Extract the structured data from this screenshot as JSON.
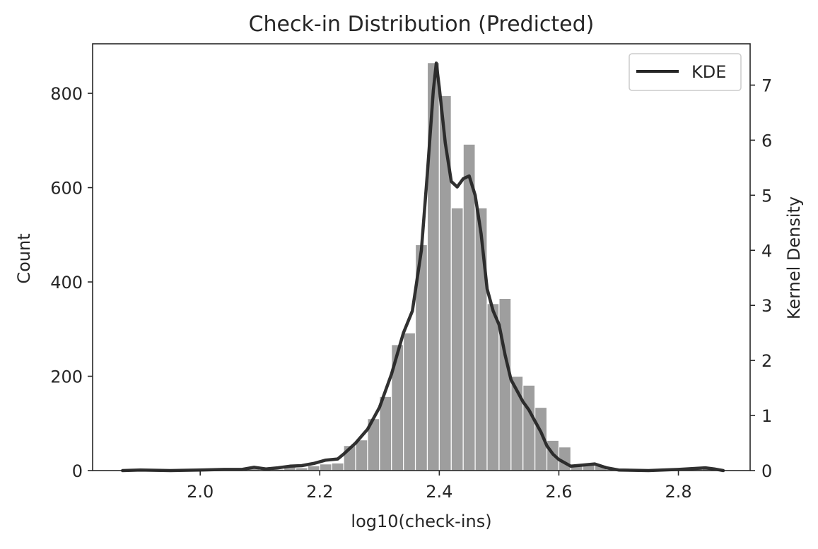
{
  "chart_data": {
    "type": "bar",
    "title": "Check-in Distribution (Predicted)",
    "xlabel": "log10(check-ins)",
    "ylabel": "Count",
    "ylabel_right": "Kernel Density",
    "xlim": [
      1.82,
      2.92
    ],
    "ylim": [
      0,
      905
    ],
    "ylim_right": [
      0,
      7.75
    ],
    "x_ticks": [
      2.0,
      2.2,
      2.4,
      2.6,
      2.8
    ],
    "x_tick_labels": [
      "2.0",
      "2.2",
      "2.4",
      "2.6",
      "2.8"
    ],
    "y_ticks": [
      0,
      200,
      400,
      600,
      800
    ],
    "y_tick_labels": [
      "0",
      "200",
      "400",
      "600",
      "800"
    ],
    "y_right_ticks": [
      0,
      1,
      2,
      3,
      4,
      5,
      6,
      7
    ],
    "y_right_tick_labels": [
      "0",
      "1",
      "2",
      "3",
      "4",
      "5",
      "6",
      "7"
    ],
    "grid": false,
    "legend": {
      "position": "top-right",
      "entries": [
        "KDE"
      ]
    },
    "series": [
      {
        "type": "histogram",
        "axis": "left",
        "color": "#9e9e9e",
        "bin_width": 0.02,
        "bin_starts": [
          1.86,
          1.88,
          1.9,
          1.92,
          1.94,
          1.96,
          1.98,
          2.0,
          2.02,
          2.04,
          2.06,
          2.08,
          2.1,
          2.12,
          2.14,
          2.16,
          2.18,
          2.2,
          2.22,
          2.24,
          2.26,
          2.28,
          2.3,
          2.32,
          2.34,
          2.36,
          2.38,
          2.4,
          2.42,
          2.44,
          2.46,
          2.48,
          2.5,
          2.52,
          2.54,
          2.56,
          2.58,
          2.6,
          2.62,
          2.64,
          2.66,
          2.68,
          2.7,
          2.72,
          2.74,
          2.76,
          2.78,
          2.8,
          2.82,
          2.84,
          2.86
        ],
        "counts": [
          0,
          1,
          0,
          0,
          0,
          0,
          0,
          0,
          1,
          0,
          1,
          5,
          2,
          3,
          8,
          6,
          10,
          14,
          16,
          53,
          65,
          110,
          157,
          267,
          292,
          479,
          865,
          795,
          557,
          692,
          557,
          354,
          365,
          200,
          181,
          134,
          64,
          50,
          13,
          13,
          11,
          2,
          1,
          0,
          1,
          0,
          1,
          0,
          3,
          4,
          0
        ]
      },
      {
        "type": "line",
        "name": "KDE",
        "axis": "right",
        "color": "#262626",
        "x": [
          1.87,
          1.9,
          1.95,
          2.0,
          2.04,
          2.07,
          2.09,
          2.11,
          2.13,
          2.15,
          2.17,
          2.19,
          2.21,
          2.23,
          2.24,
          2.26,
          2.28,
          2.3,
          2.32,
          2.34,
          2.355,
          2.37,
          2.38,
          2.39,
          2.395,
          2.4,
          2.41,
          2.42,
          2.43,
          2.44,
          2.45,
          2.46,
          2.47,
          2.48,
          2.49,
          2.5,
          2.51,
          2.52,
          2.53,
          2.54,
          2.55,
          2.56,
          2.57,
          2.58,
          2.59,
          2.6,
          2.62,
          2.64,
          2.66,
          2.68,
          2.7,
          2.75,
          2.8,
          2.83,
          2.845,
          2.86,
          2.875
        ],
        "y": [
          0.0,
          0.01,
          0.0,
          0.01,
          0.02,
          0.02,
          0.06,
          0.03,
          0.05,
          0.08,
          0.09,
          0.13,
          0.19,
          0.21,
          0.3,
          0.5,
          0.75,
          1.15,
          1.75,
          2.5,
          2.9,
          4.0,
          5.4,
          6.9,
          7.4,
          6.95,
          5.95,
          5.25,
          5.15,
          5.3,
          5.35,
          5.0,
          4.3,
          3.3,
          2.9,
          2.65,
          2.1,
          1.65,
          1.45,
          1.25,
          1.1,
          0.9,
          0.7,
          0.45,
          0.3,
          0.2,
          0.08,
          0.1,
          0.12,
          0.05,
          0.01,
          0.0,
          0.02,
          0.04,
          0.05,
          0.03,
          0.0
        ]
      }
    ]
  }
}
